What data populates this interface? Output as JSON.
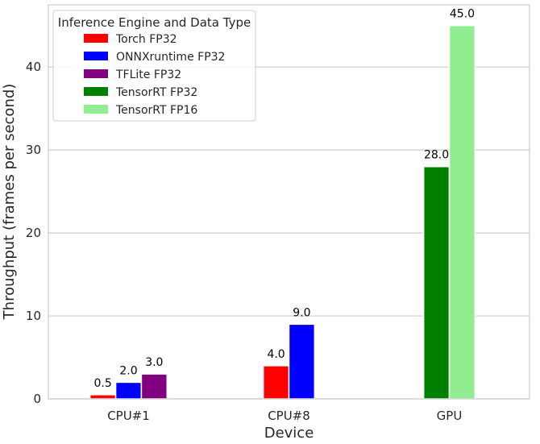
{
  "chart_data": {
    "type": "bar",
    "xlabel": "Device",
    "ylabel": "Throughput (frames per second)",
    "ylim": [
      0,
      47.5
    ],
    "yticks": [
      0,
      10,
      20,
      30,
      40
    ],
    "grid": "horizontal",
    "legend": {
      "title": "Inference Engine and Data Type",
      "placement": "top-left"
    },
    "categories": [
      "CPU#1",
      "CPU#8",
      "GPU"
    ],
    "series": [
      {
        "name": "Torch FP32",
        "color": "#ff0000",
        "values": [
          0.5,
          4.0,
          null
        ]
      },
      {
        "name": "ONNXruntime FP32",
        "color": "#0000ff",
        "values": [
          2.0,
          9.0,
          null
        ]
      },
      {
        "name": "TFLite FP32",
        "color": "#800080",
        "values": [
          3.0,
          null,
          null
        ]
      },
      {
        "name": "TensorRT FP32",
        "color": "#008000",
        "values": [
          null,
          null,
          28.0
        ]
      },
      {
        "name": "TensorRT FP16",
        "color": "#90ee90",
        "values": [
          null,
          null,
          45.0
        ]
      }
    ]
  }
}
